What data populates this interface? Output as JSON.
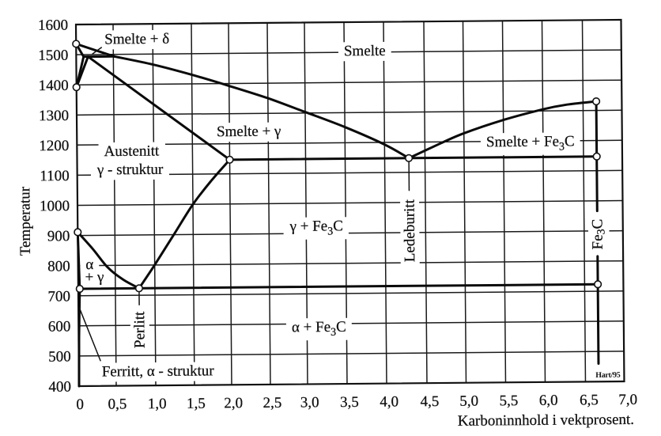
{
  "chart_data": {
    "type": "line",
    "title": "",
    "xlabel": "Karboninnhold i vektprosent.",
    "ylabel": "Temperatur",
    "xlim": [
      0,
      7.0
    ],
    "ylim": [
      400,
      1600
    ],
    "grid": true,
    "legend": null,
    "x_ticks": [
      {
        "value": 0,
        "label": "0"
      },
      {
        "value": 0.5,
        "label": "0,5"
      },
      {
        "value": 1.0,
        "label": "1,0"
      },
      {
        "value": 1.5,
        "label": "1,5"
      },
      {
        "value": 2.0,
        "label": "2,0"
      },
      {
        "value": 2.5,
        "label": "2,5"
      },
      {
        "value": 3.0,
        "label": "3,0"
      },
      {
        "value": 3.5,
        "label": "3,5"
      },
      {
        "value": 4.0,
        "label": "4,0"
      },
      {
        "value": 4.5,
        "label": "4,5"
      },
      {
        "value": 5.0,
        "label": "5,0"
      },
      {
        "value": 5.5,
        "label": "5,5"
      },
      {
        "value": 6.0,
        "label": "6,0"
      },
      {
        "value": 6.5,
        "label": "6,5"
      },
      {
        "value": 7.0,
        "label": "7,0"
      }
    ],
    "y_ticks": [
      {
        "value": 400,
        "label": "400"
      },
      {
        "value": 500,
        "label": "500"
      },
      {
        "value": 600,
        "label": "600"
      },
      {
        "value": 700,
        "label": "700"
      },
      {
        "value": 800,
        "label": "800"
      },
      {
        "value": 900,
        "label": "900"
      },
      {
        "value": 1000,
        "label": "1000"
      },
      {
        "value": 1100,
        "label": "1100"
      },
      {
        "value": 1200,
        "label": "1200"
      },
      {
        "value": 1300,
        "label": "1300"
      },
      {
        "value": 1400,
        "label": "1400"
      },
      {
        "value": 1500,
        "label": "1500"
      },
      {
        "value": 1600,
        "label": "1600"
      }
    ],
    "series": [
      {
        "name": "liquidus-delta",
        "kind": "phase-boundary",
        "points": [
          [
            0,
            1536
          ],
          [
            0.51,
            1493
          ]
        ]
      },
      {
        "name": "liquidus-austenite",
        "kind": "phase-boundary",
        "smooth": true,
        "points": [
          [
            0.51,
            1493
          ],
          [
            1.0,
            1465
          ],
          [
            1.5,
            1430
          ],
          [
            2.0,
            1392
          ],
          [
            2.5,
            1350
          ],
          [
            3.0,
            1303
          ],
          [
            3.5,
            1252
          ],
          [
            4.0,
            1193
          ],
          [
            4.3,
            1147
          ]
        ]
      },
      {
        "name": "solidus-delta",
        "kind": "phase-boundary",
        "points": [
          [
            0,
            1536
          ],
          [
            0.1,
            1493
          ]
        ]
      },
      {
        "name": "delta-to-delta-gamma-boundary",
        "kind": "phase-boundary",
        "points": [
          [
            0,
            1392
          ],
          [
            0.1,
            1493
          ]
        ]
      },
      {
        "name": "gamma-to-delta-gamma-boundary",
        "kind": "phase-boundary",
        "points": [
          [
            0,
            1392
          ],
          [
            0.16,
            1493
          ]
        ]
      },
      {
        "name": "peritectic-line",
        "kind": "phase-boundary",
        "points": [
          [
            0.1,
            1493
          ],
          [
            0.51,
            1493
          ]
        ]
      },
      {
        "name": "solidus-austenite",
        "kind": "phase-boundary",
        "points": [
          [
            0.16,
            1493
          ],
          [
            2.0,
            1147
          ]
        ]
      },
      {
        "name": "eutectic-line",
        "kind": "phase-boundary",
        "points": [
          [
            2.0,
            1147
          ],
          [
            6.67,
            1147
          ]
        ]
      },
      {
        "name": "liquidus-cementite",
        "kind": "phase-boundary",
        "smooth": true,
        "points": [
          [
            4.3,
            1147
          ],
          [
            4.7,
            1195
          ],
          [
            5.0,
            1228
          ],
          [
            5.5,
            1271
          ],
          [
            6.0,
            1305
          ],
          [
            6.3,
            1320
          ],
          [
            6.67,
            1330
          ]
        ]
      },
      {
        "name": "cementite-line-upper",
        "kind": "phase-boundary",
        "points": [
          [
            6.67,
            1330
          ],
          [
            6.67,
            966
          ]
        ]
      },
      {
        "name": "cementite-line-lower",
        "kind": "phase-boundary",
        "points": [
          [
            6.67,
            816
          ],
          [
            6.67,
            460
          ]
        ]
      },
      {
        "name": "a3-line",
        "kind": "phase-boundary",
        "smooth": true,
        "points": [
          [
            0,
            911
          ],
          [
            0.2,
            855
          ],
          [
            0.4,
            793
          ],
          [
            0.6,
            752
          ],
          [
            0.8,
            723
          ]
        ]
      },
      {
        "name": "acm-line",
        "kind": "phase-boundary",
        "smooth": true,
        "points": [
          [
            0.8,
            723
          ],
          [
            1.0,
            800
          ],
          [
            1.25,
            900
          ],
          [
            1.5,
            1000
          ],
          [
            1.75,
            1078
          ],
          [
            2.0,
            1147
          ]
        ]
      },
      {
        "name": "ferrite-boundary-upper",
        "kind": "phase-boundary",
        "points": [
          [
            0,
            911
          ],
          [
            0.02,
            723
          ]
        ]
      },
      {
        "name": "eutectoid-line",
        "kind": "phase-boundary",
        "points": [
          [
            0.02,
            723
          ],
          [
            6.67,
            723
          ]
        ]
      },
      {
        "name": "ferrite-solvus",
        "kind": "phase-boundary",
        "points": [
          [
            0.02,
            723
          ],
          [
            0.005,
            560
          ],
          [
            0,
            400
          ]
        ]
      },
      {
        "name": "leader-smelte-delta",
        "kind": "leader",
        "points": [
          [
            0.22,
            1502
          ],
          [
            0.34,
            1523
          ]
        ]
      },
      {
        "name": "leader-ferritt",
        "kind": "leader",
        "points": [
          [
            0.01,
            662
          ],
          [
            0.29,
            484
          ]
        ]
      },
      {
        "name": "leader-ledeburitt",
        "kind": "leader",
        "points": [
          [
            4.3,
            1147
          ],
          [
            4.3,
            1040
          ]
        ]
      },
      {
        "name": "leader-perlitt",
        "kind": "leader",
        "points": [
          [
            0.8,
            723
          ],
          [
            0.8,
            668
          ]
        ]
      }
    ],
    "special_points": [
      {
        "name": "melting-point-pure-iron",
        "x": 0,
        "y": 1536
      },
      {
        "name": "gamma-delta-transition",
        "x": 0,
        "y": 1392
      },
      {
        "name": "alpha-gamma-transition",
        "x": 0,
        "y": 911
      },
      {
        "name": "max-ferrite-solubility",
        "x": 0.02,
        "y": 723
      },
      {
        "name": "eutectoid-point",
        "x": 0.8,
        "y": 723
      },
      {
        "name": "max-austenite-solubility",
        "x": 2.0,
        "y": 1147
      },
      {
        "name": "eutectic-point",
        "x": 4.3,
        "y": 1147
      },
      {
        "name": "cementite-eutectic",
        "x": 6.67,
        "y": 1147
      },
      {
        "name": "cementite-liquidus",
        "x": 6.67,
        "y": 1330
      },
      {
        "name": "cementite-eutectoid",
        "x": 6.67,
        "y": 723
      }
    ],
    "region_labels": [
      {
        "name": "label-smelte-delta",
        "text": "Smelte + δ",
        "x": 0.8,
        "y": 1535
      },
      {
        "name": "label-smelte",
        "text": "Smelte",
        "x": 3.76,
        "y": 1489
      },
      {
        "name": "label-smelte-gamma",
        "text": "Smelte + γ",
        "x": 2.25,
        "y": 1225
      },
      {
        "name": "label-austenitt",
        "text": "Austenitt",
        "x": 0.72,
        "y": 1163
      },
      {
        "name": "label-gamma-struktur",
        "text": "γ - struktur",
        "x": 0.7,
        "y": 1102
      },
      {
        "name": "label-smelte-fe3c",
        "text": "Smelte + Fe₃C",
        "x": 5.84,
        "y": 1183
      },
      {
        "name": "label-gamma-fe3c",
        "text": "γ + Fe₃C",
        "x": 3.13,
        "y": 909
      },
      {
        "name": "label-ledeburitt",
        "text": "Ledeburitt",
        "x": 4.3,
        "y": 906,
        "rotate": -90
      },
      {
        "name": "label-fe3c",
        "text": "Fe₃C",
        "x": 6.67,
        "y": 889,
        "rotate": -90
      },
      {
        "name": "label-alpha",
        "text": "α",
        "x": 0.155,
        "y": 788
      },
      {
        "name": "label-plus-gamma",
        "text": "+ γ",
        "x": 0.22,
        "y": 746
      },
      {
        "name": "label-perlitt",
        "text": "Perlitt",
        "x": 0.8,
        "y": 585,
        "rotate": -90
      },
      {
        "name": "label-alpha-fe3c",
        "text": "α + Fe₃C",
        "x": 3.15,
        "y": 574
      },
      {
        "name": "label-ferritt",
        "text": "Ferritt, α - struktur",
        "x": 1.03,
        "y": 432
      }
    ],
    "credit": {
      "text": "Hart/95",
      "x": 6.79,
      "y": 414
    }
  }
}
